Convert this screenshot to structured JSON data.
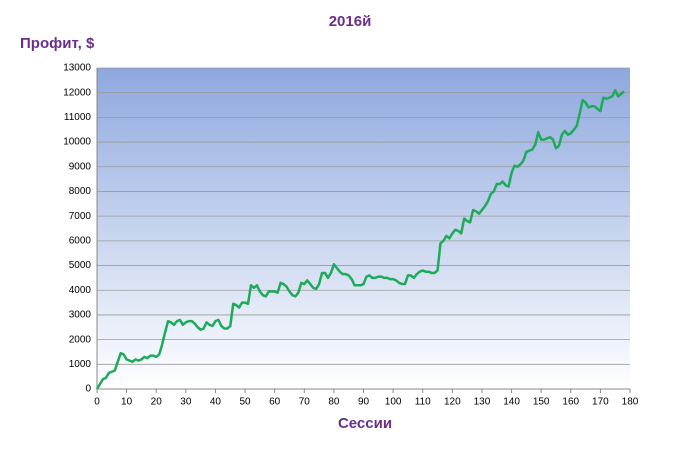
{
  "chart_data": {
    "type": "line",
    "title": "2016й",
    "y_label": "Профит, $",
    "x_label": "Сессии",
    "color": "#1dab5a",
    "values": [
      0,
      200,
      400,
      450,
      650,
      700,
      750,
      1100,
      1450,
      1400,
      1200,
      1150,
      1100,
      1200,
      1150,
      1200,
      1300,
      1250,
      1350,
      1350,
      1300,
      1400,
      1800,
      2300,
      2750,
      2700,
      2600,
      2750,
      2800,
      2600,
      2700,
      2750,
      2750,
      2650,
      2500,
      2400,
      2450,
      2700,
      2600,
      2550,
      2750,
      2800,
      2550,
      2450,
      2450,
      2550,
      3450,
      3400,
      3300,
      3500,
      3500,
      3450,
      4200,
      4100,
      4200,
      3950,
      3800,
      3750,
      3950,
      3950,
      3950,
      3900,
      4300,
      4250,
      4150,
      3950,
      3800,
      3750,
      3900,
      4300,
      4250,
      4400,
      4250,
      4100,
      4050,
      4250,
      4700,
      4700,
      4500,
      4700,
      5050,
      4900,
      4750,
      4650,
      4650,
      4600,
      4450,
      4200,
      4200,
      4200,
      4250,
      4550,
      4600,
      4500,
      4500,
      4550,
      4550,
      4500,
      4500,
      4450,
      4450,
      4400,
      4300,
      4250,
      4250,
      4600,
      4600,
      4500,
      4650,
      4750,
      4800,
      4750,
      4750,
      4700,
      4700,
      4800,
      5900,
      6000,
      6200,
      6100,
      6300,
      6450,
      6400,
      6300,
      6900,
      6800,
      6750,
      7250,
      7200,
      7100,
      7250,
      7400,
      7600,
      7900,
      8000,
      8300,
      8300,
      8400,
      8250,
      8200,
      8750,
      9050,
      9000,
      9100,
      9250,
      9600,
      9650,
      9700,
      9900,
      10400,
      10100,
      10100,
      10150,
      10200,
      10100,
      9750,
      9850,
      10300,
      10450,
      10300,
      10350,
      10500,
      10650,
      11150,
      11700,
      11600,
      11400,
      11450,
      11450,
      11350,
      11250,
      11800,
      11750,
      11800,
      11850,
      12100,
      11850,
      11950,
      12050
    ],
    "xlim": [
      0,
      180
    ],
    "xticks": [
      0,
      10,
      20,
      30,
      40,
      50,
      60,
      70,
      80,
      90,
      100,
      110,
      120,
      130,
      140,
      150,
      160,
      170,
      180
    ],
    "ylim": [
      0,
      13000
    ],
    "yticks": [
      0,
      1000,
      2000,
      3000,
      4000,
      5000,
      6000,
      7000,
      8000,
      9000,
      10000,
      11000,
      12000,
      13000
    ],
    "grid": true
  }
}
